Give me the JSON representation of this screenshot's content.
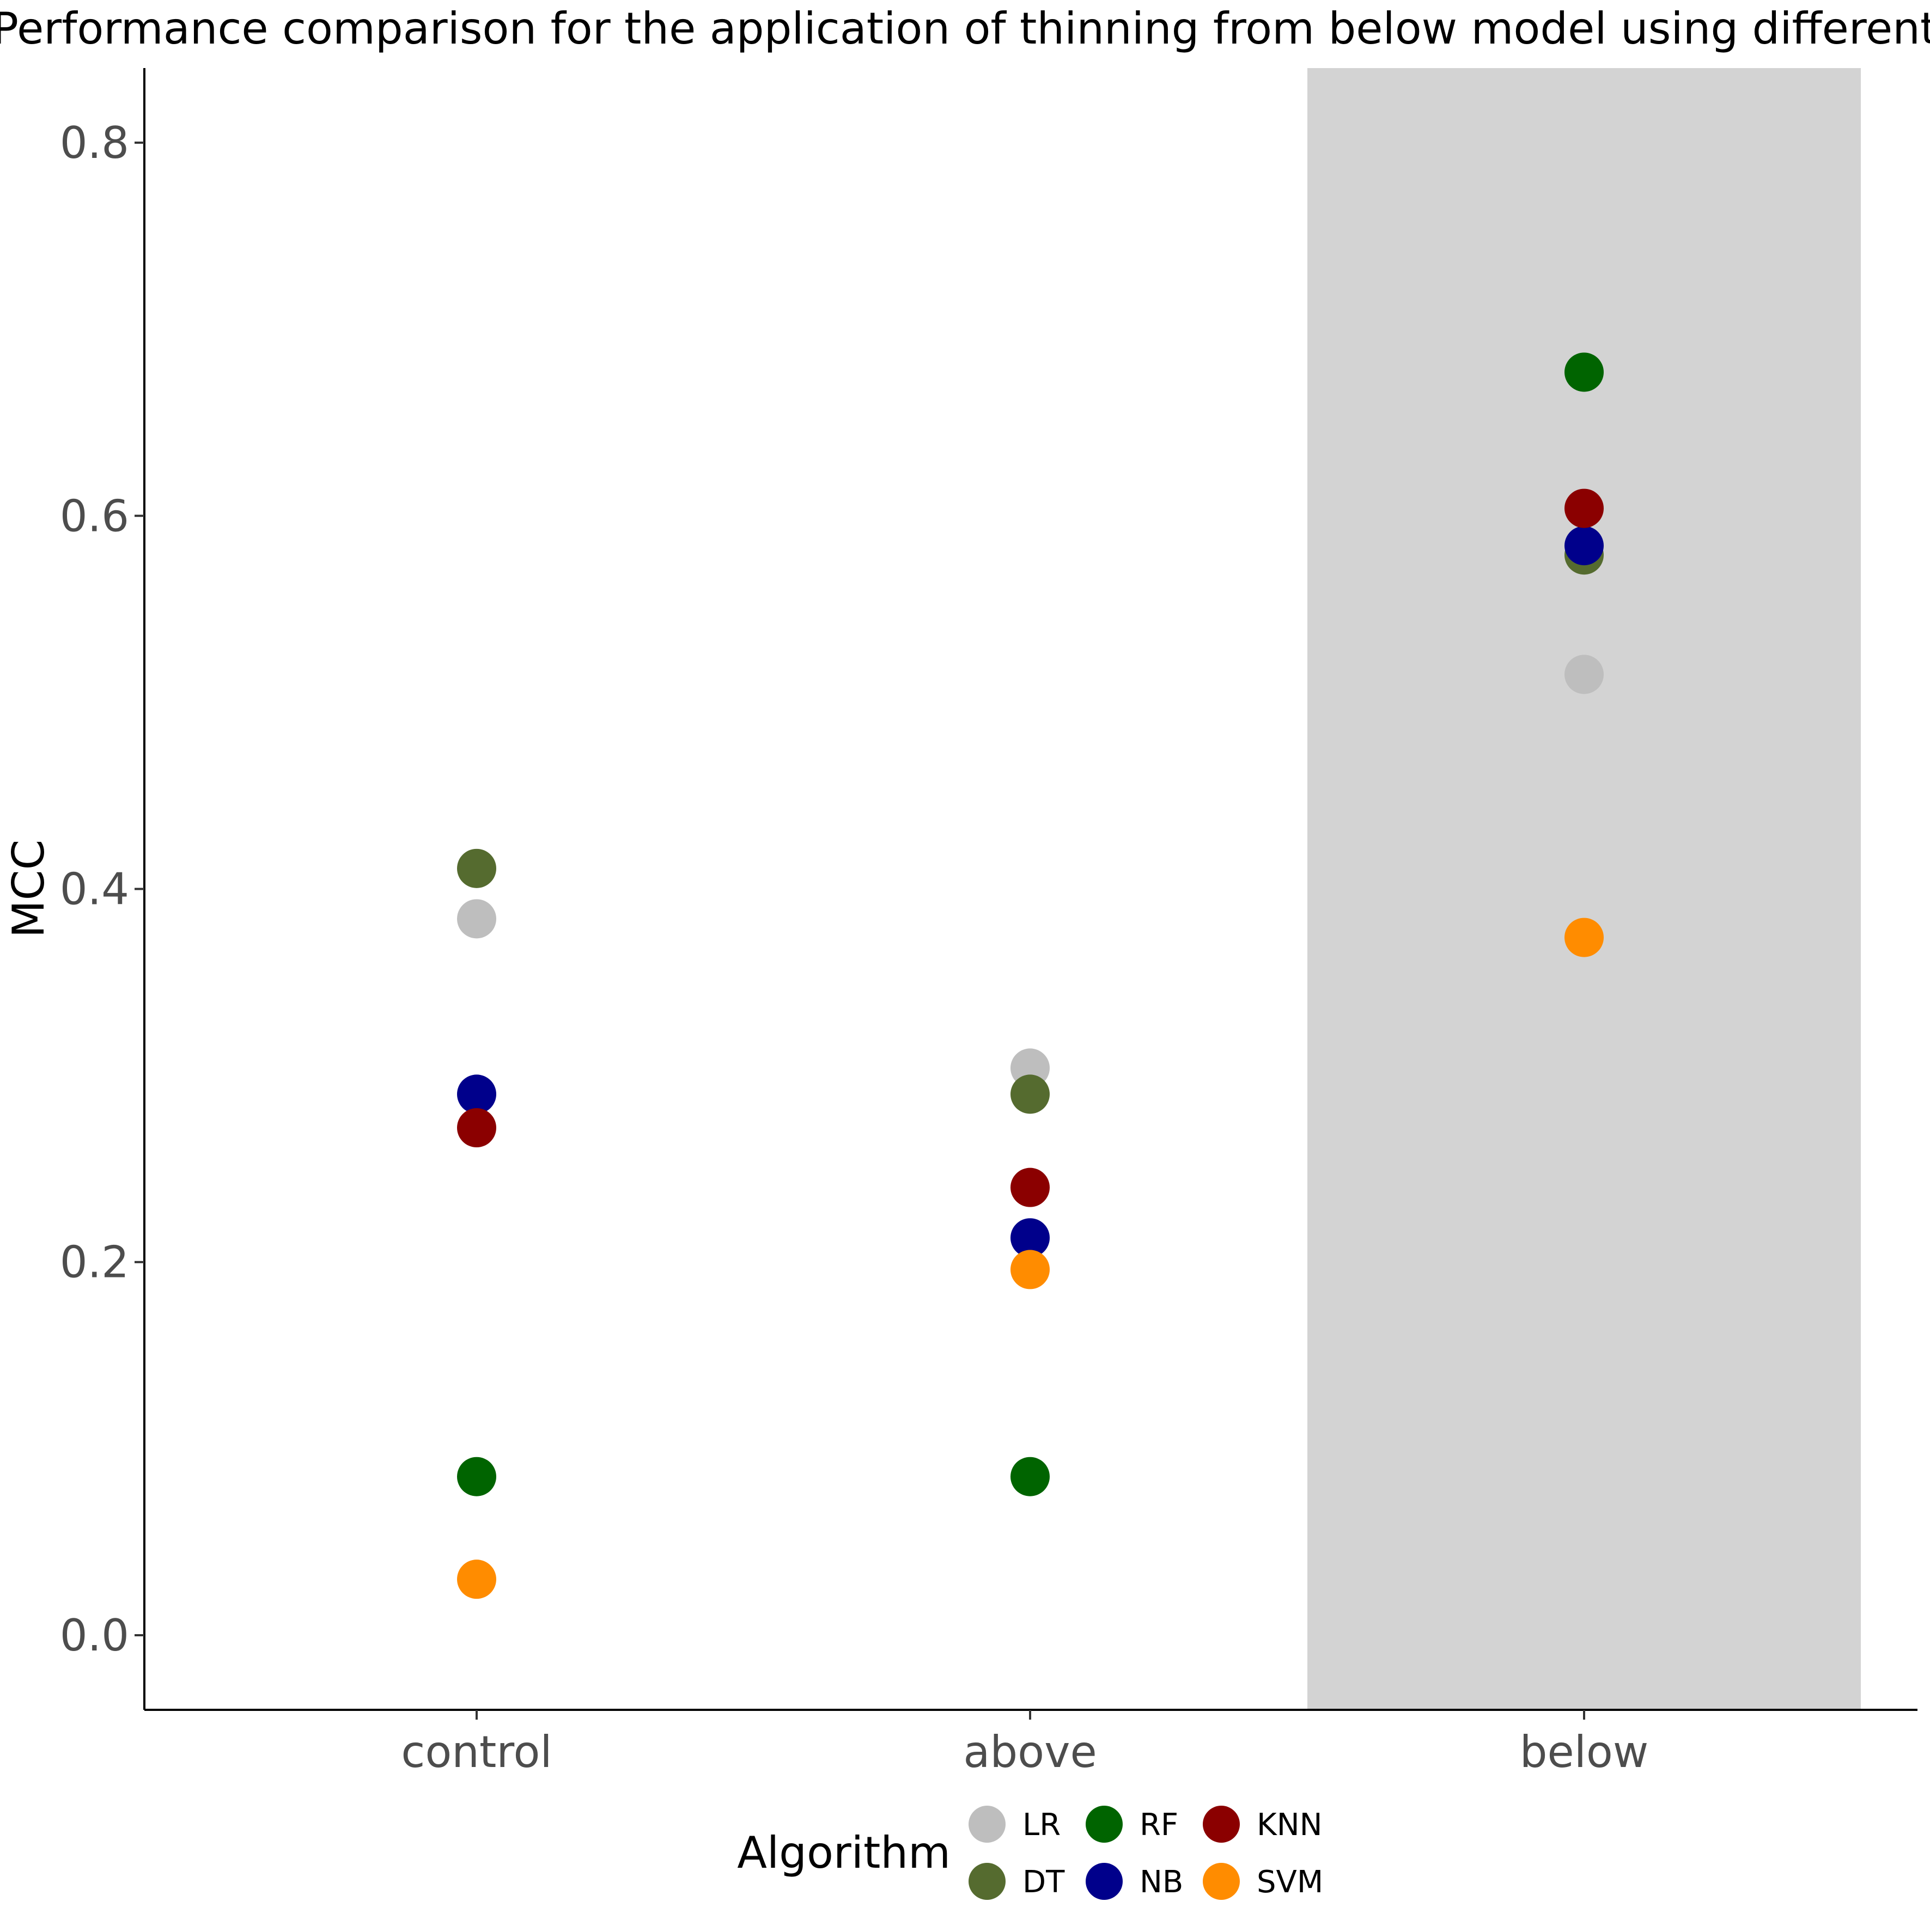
{
  "chart_data": {
    "type": "scatter",
    "title": "Performance comparison for the application of thinning from below model using different",
    "xlabel": "",
    "ylabel": "MCC",
    "categories": [
      "control",
      "above",
      "below"
    ],
    "ylim": [
      -0.04,
      0.84
    ],
    "yticks": [
      0.0,
      0.2,
      0.4,
      0.6,
      0.8
    ],
    "ytick_labels": [
      "0.0",
      "0.2",
      "0.4",
      "0.6",
      "0.8"
    ],
    "highlight_category": "below",
    "highlight_color": "#d3d3d3",
    "grid": false,
    "legend": {
      "title": "Algorithm",
      "position": "bottom"
    },
    "series": [
      {
        "name": "LR",
        "color": "#bebebe",
        "values": [
          0.384,
          0.304,
          0.515
        ]
      },
      {
        "name": "DT",
        "color": "#556b2f",
        "values": [
          0.411,
          0.29,
          0.579
        ]
      },
      {
        "name": "RF",
        "color": "#006400",
        "values": [
          0.085,
          0.085,
          0.677
        ]
      },
      {
        "name": "NB",
        "color": "#00008b",
        "values": [
          0.29,
          0.213,
          0.584
        ]
      },
      {
        "name": "KNN",
        "color": "#8b0000",
        "values": [
          0.272,
          0.24,
          0.604
        ]
      },
      {
        "name": "SVM",
        "color": "#ff8c00",
        "values": [
          0.03,
          0.196,
          0.374
        ]
      }
    ]
  }
}
